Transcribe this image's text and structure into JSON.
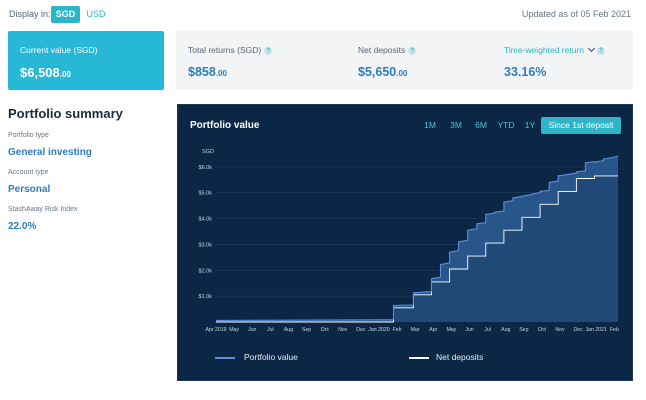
{
  "header": {
    "display_label": "Display in:",
    "currencies": [
      {
        "label": "SGD",
        "active": true
      },
      {
        "label": "USD",
        "active": false
      }
    ],
    "updated": "Updated as of 05 Feb 2021"
  },
  "current_value": {
    "label": "Current value (SGD)",
    "amount": "$6,508",
    "cents": ".00"
  },
  "stats": {
    "total_returns": {
      "label": "Total returns (SGD)",
      "amount": "$858",
      "cents": ".00"
    },
    "net_deposits": {
      "label": "Net deposits",
      "amount": "$5,650",
      "cents": ".00"
    },
    "twr": {
      "label": "Time-weighted return",
      "value": "33.16%"
    },
    "help_glyph": "?"
  },
  "summary": {
    "title": "Portfolio summary",
    "portfolio_type_label": "Portfolio type",
    "portfolio_type_value": "General investing",
    "account_type_label": "Account type",
    "account_type_value": "Personal",
    "risk_label": "StashAway Risk Index",
    "risk_value": "22.0%"
  },
  "chart_panel": {
    "title": "Portfolio value",
    "ranges": [
      {
        "label": "1M",
        "active": false
      },
      {
        "label": "3M",
        "active": false
      },
      {
        "label": "6M",
        "active": false
      },
      {
        "label": "YTD",
        "active": false
      },
      {
        "label": "1Y",
        "active": false
      },
      {
        "label": "Since 1st deposit",
        "active": true
      }
    ]
  },
  "colors": {
    "accent": "#29b6c8",
    "portfolio_line": "#5b8fe0",
    "deposit_line": "#ffffff",
    "panel_bg": "#0b2745"
  },
  "chart_data": {
    "type": "area",
    "title": "Portfolio value",
    "ylabel": "SGD",
    "ylim": [
      0,
      7000
    ],
    "yticks": [
      1000,
      2000,
      3000,
      4000,
      5000,
      6000
    ],
    "ytick_labels": [
      "$1.0k",
      "$2.0k",
      "$3.0k",
      "$4.0k",
      "$5.0k",
      "$6.0k"
    ],
    "xlim": [
      0,
      22.2
    ],
    "x_ticks": [
      {
        "x": 0,
        "label": "Apr 2019"
      },
      {
        "x": 1,
        "label": "May"
      },
      {
        "x": 2,
        "label": "Jun"
      },
      {
        "x": 3,
        "label": "Jul"
      },
      {
        "x": 4,
        "label": "Aug"
      },
      {
        "x": 5,
        "label": "Sep"
      },
      {
        "x": 6,
        "label": "Oct"
      },
      {
        "x": 7,
        "label": "Nov"
      },
      {
        "x": 8,
        "label": "Dec"
      },
      {
        "x": 9,
        "label": "Jan 2020"
      },
      {
        "x": 10,
        "label": "Feb"
      },
      {
        "x": 11,
        "label": "Mar"
      },
      {
        "x": 12,
        "label": "Apr"
      },
      {
        "x": 13,
        "label": "May"
      },
      {
        "x": 14,
        "label": "Jun"
      },
      {
        "x": 15,
        "label": "Jul"
      },
      {
        "x": 16,
        "label": "Aug"
      },
      {
        "x": 17,
        "label": "Sep"
      },
      {
        "x": 18,
        "label": "Oct"
      },
      {
        "x": 19,
        "label": "Nov"
      },
      {
        "x": 20,
        "label": "Dec"
      },
      {
        "x": 21,
        "label": "Jan 2021"
      },
      {
        "x": 22,
        "label": "Feb"
      }
    ],
    "series": [
      {
        "name": "Portfolio value",
        "x": [
          0,
          9.8,
          9.8,
          10.9,
          10.9,
          11.9,
          11.9,
          12.4,
          12.4,
          12.9,
          12.9,
          13.4,
          13.4,
          13.9,
          13.9,
          14.4,
          14.4,
          14.9,
          14.9,
          15.4,
          15.4,
          15.9,
          15.9,
          16.4,
          16.4,
          16.9,
          16.9,
          17.4,
          17.4,
          17.9,
          17.9,
          18.4,
          18.4,
          18.9,
          18.9,
          19.4,
          19.4,
          19.9,
          19.9,
          20.4,
          20.4,
          20.9,
          20.9,
          21.4,
          21.4,
          21.9,
          22.2
        ],
        "values": [
          60,
          90,
          640,
          660,
          1130,
          1180,
          1680,
          1730,
          2220,
          2290,
          2700,
          2760,
          3100,
          3160,
          3550,
          3610,
          3800,
          3840,
          4160,
          4210,
          4250,
          4290,
          4640,
          4690,
          4800,
          4850,
          4870,
          4920,
          4940,
          5010,
          5050,
          5090,
          5400,
          5450,
          5650,
          5700,
          5700,
          5760,
          5800,
          5850,
          6160,
          6200,
          6180,
          6240,
          6300,
          6360,
          6420
        ]
      },
      {
        "name": "Net deposits",
        "x": [
          0,
          9.8,
          9.8,
          10.9,
          10.9,
          11.9,
          11.9,
          12.9,
          12.9,
          13.9,
          13.9,
          14.9,
          14.9,
          15.9,
          15.9,
          16.9,
          16.9,
          17.9,
          17.9,
          18.9,
          18.9,
          19.9,
          19.9,
          20.9,
          20.9,
          22.2
        ],
        "values": [
          0,
          0,
          550,
          550,
          1050,
          1050,
          1550,
          1550,
          2050,
          2050,
          2550,
          2550,
          3050,
          3050,
          3550,
          3550,
          4050,
          4050,
          4550,
          4550,
          5050,
          5050,
          5550,
          5550,
          5650,
          5650
        ]
      }
    ]
  }
}
